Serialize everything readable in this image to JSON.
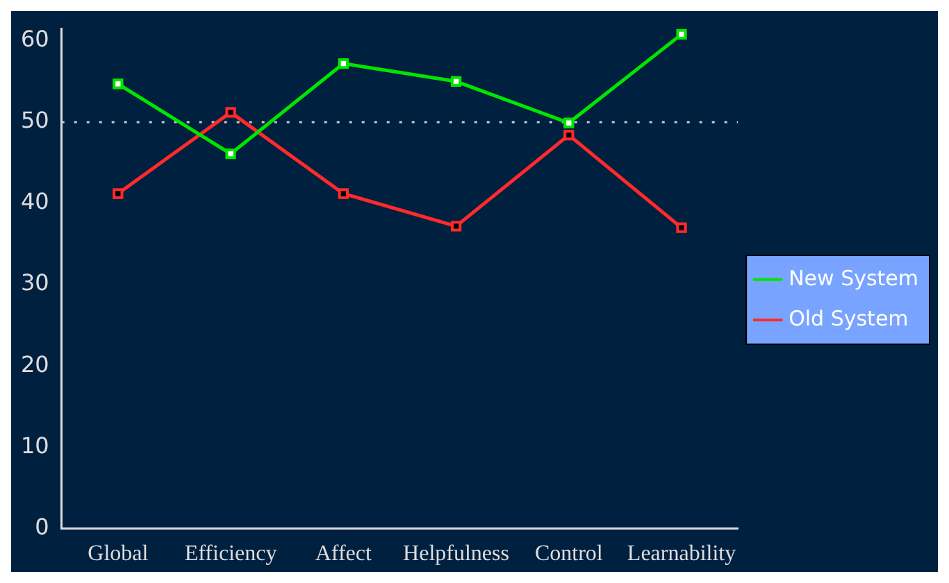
{
  "chart_data": {
    "type": "line",
    "categories": [
      "Global",
      "Efficiency",
      "Affect",
      "Helpfulness",
      "Control",
      "Learnability"
    ],
    "series": [
      {
        "name": "New System",
        "color": "#00e600",
        "values": [
          54.7,
          46.1,
          57.2,
          55.0,
          49.9,
          60.8
        ]
      },
      {
        "name": "Old System",
        "color": "#ff2a2a",
        "values": [
          41.2,
          51.2,
          41.2,
          37.2,
          48.4,
          37.0
        ]
      }
    ],
    "ylim": [
      0,
      61.5
    ],
    "yticks": [
      0,
      10,
      20,
      30,
      40,
      50,
      60
    ],
    "grid": false,
    "legend": "right",
    "marker": "square",
    "line_style": "solid",
    "ref_lines": [
      {
        "axis": "y",
        "value": 50,
        "color": "#cccccc",
        "line_style": "dotted"
      }
    ]
  }
}
